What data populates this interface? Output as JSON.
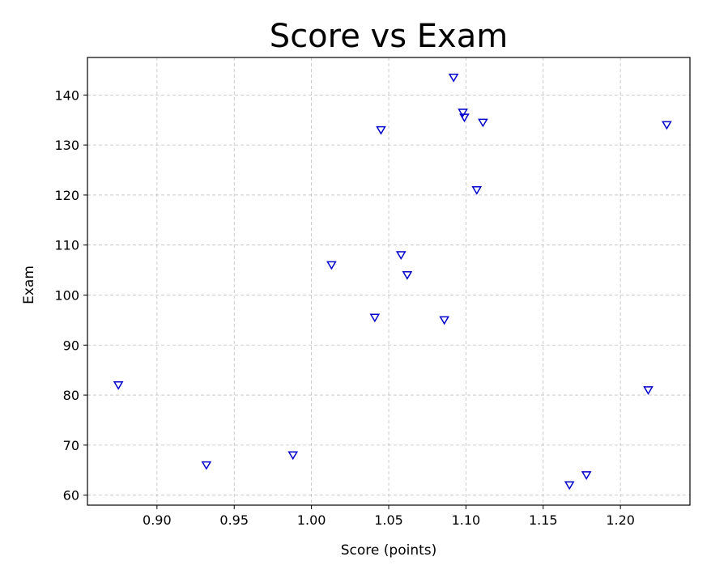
{
  "chart_data": {
    "type": "scatter",
    "title": "Score vs Exam",
    "xlabel": "Score (points)",
    "ylabel": "Exam",
    "xlim": [
      0.855,
      1.245
    ],
    "ylim": [
      58,
      147.5
    ],
    "xticks": [
      0.9,
      0.95,
      1.0,
      1.05,
      1.1,
      1.15,
      1.2
    ],
    "xtick_labels": [
      "0.90",
      "0.95",
      "1.00",
      "1.05",
      "1.10",
      "1.15",
      "1.20"
    ],
    "yticks": [
      60,
      70,
      80,
      90,
      100,
      110,
      120,
      130,
      140
    ],
    "ytick_labels": [
      "60",
      "70",
      "80",
      "90",
      "100",
      "110",
      "120",
      "130",
      "140"
    ],
    "grid": true,
    "marker": "triangle-down",
    "marker_color": "#0000cc",
    "series": [
      {
        "points": [
          {
            "x": 0.875,
            "y": 82
          },
          {
            "x": 0.932,
            "y": 66
          },
          {
            "x": 0.988,
            "y": 68
          },
          {
            "x": 1.013,
            "y": 106
          },
          {
            "x": 1.041,
            "y": 95.5
          },
          {
            "x": 1.045,
            "y": 133
          },
          {
            "x": 1.058,
            "y": 108
          },
          {
            "x": 1.062,
            "y": 104
          },
          {
            "x": 1.086,
            "y": 95
          },
          {
            "x": 1.092,
            "y": 143.5
          },
          {
            "x": 1.098,
            "y": 136.5
          },
          {
            "x": 1.099,
            "y": 135.5
          },
          {
            "x": 1.107,
            "y": 121
          },
          {
            "x": 1.111,
            "y": 134.5
          },
          {
            "x": 1.167,
            "y": 62
          },
          {
            "x": 1.178,
            "y": 64
          },
          {
            "x": 1.218,
            "y": 81
          },
          {
            "x": 1.23,
            "y": 134
          }
        ]
      }
    ]
  }
}
